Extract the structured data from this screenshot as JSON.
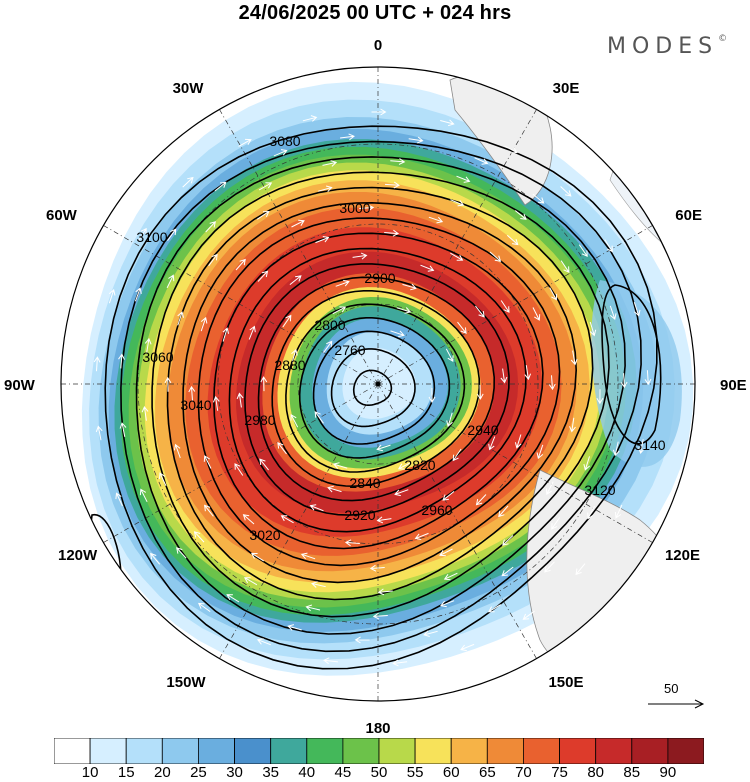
{
  "header": {
    "title": "24/06/2025  00 UTC  + 024 hrs",
    "brand": "MODES"
  },
  "longitude_labels": [
    {
      "name": "lon-0",
      "text": "0"
    },
    {
      "name": "lon-30e",
      "text": "30E"
    },
    {
      "name": "lon-60e",
      "text": "60E"
    },
    {
      "name": "lon-90e",
      "text": "90E"
    },
    {
      "name": "lon-120e",
      "text": "120E"
    },
    {
      "name": "lon-150e",
      "text": "150E"
    },
    {
      "name": "lon-180",
      "text": "180"
    },
    {
      "name": "lon-150w",
      "text": "150W"
    },
    {
      "name": "lon-120w",
      "text": "120W"
    },
    {
      "name": "lon-90w",
      "text": "90W"
    },
    {
      "name": "lon-60w",
      "text": "60W"
    },
    {
      "name": "lon-30w",
      "text": "30W"
    }
  ],
  "contour_labels": [
    "2760",
    "2800",
    "2820",
    "2840",
    "2880",
    "2900",
    "2920",
    "2940",
    "2960",
    "2980",
    "3000",
    "3020",
    "3040",
    "3060",
    "3080",
    "3100",
    "3120",
    "3140"
  ],
  "vector_reference": {
    "value": "50"
  },
  "colorbar": {
    "ticks": [
      "10",
      "15",
      "20",
      "25",
      "30",
      "35",
      "40",
      "45",
      "50",
      "55",
      "60",
      "65",
      "70",
      "75",
      "80",
      "85",
      "90"
    ],
    "colors": [
      "#ffffff",
      "#d6efff",
      "#b4e0fa",
      "#8ec9ee",
      "#6aaedf",
      "#4a90cc",
      "#3fa89c",
      "#44b85a",
      "#6cc24a",
      "#b8d94a",
      "#f7e25a",
      "#f6b347",
      "#ef8a37",
      "#e9612f",
      "#dd3b2b",
      "#c62a2a",
      "#a81f24",
      "#8c1a1f"
    ]
  }
}
